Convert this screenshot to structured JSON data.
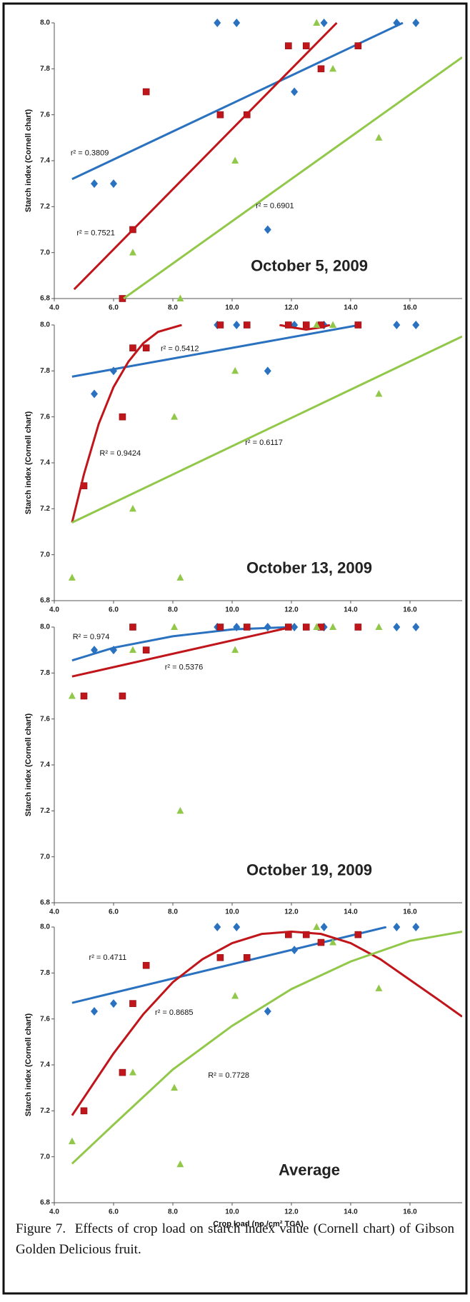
{
  "chart_data": [
    {
      "type": "scatter",
      "title": "October 5, 2009",
      "ylabel": "Starch index (Cornell chart)",
      "xlim": [
        4,
        17.76
      ],
      "ylim": [
        6.8,
        8.0
      ],
      "xticks": [
        {
          "value": 4,
          "label": "4.0"
        },
        {
          "value": 6,
          "label": "6.0"
        },
        {
          "value": 8,
          "label": "8.0"
        },
        {
          "value": 10,
          "label": "10.0"
        },
        {
          "value": 12,
          "label": "12.0"
        },
        {
          "value": 14,
          "label": "14.0"
        },
        {
          "value": 16,
          "label": "16.0"
        }
      ],
      "yticks": [
        6.8,
        {
          "value": 7,
          "label": "7.0"
        },
        7.2,
        7.4,
        7.6,
        7.8,
        {
          "value": 8,
          "label": "8.0"
        }
      ],
      "series": [
        {
          "marker": "diamond",
          "color": "#2a72c0",
          "x": [
            5.35,
            6.0,
            9.5,
            10.15,
            11.2,
            12.1,
            13.1,
            15.55,
            16.2
          ],
          "values": [
            7.3,
            7.3,
            8.0,
            8.0,
            7.1,
            7.7,
            8.0,
            8.0,
            8.0
          ],
          "trend": {
            "x": [
              4.6,
              15.76
            ],
            "y": [
              7.32,
              8.0
            ]
          },
          "r2_label": "r² = 0.3809"
        },
        {
          "marker": "square",
          "color": "#c0161b",
          "x": [
            6.3,
            6.65,
            7.1,
            9.6,
            10.5,
            11.9,
            12.5,
            13.0,
            14.25
          ],
          "values": [
            6.8,
            7.1,
            7.7,
            7.6,
            7.6,
            7.9,
            7.9,
            7.8,
            7.9
          ],
          "trend": {
            "x": [
              4.67,
              13.53
            ],
            "y": [
              6.84,
              8.0
            ]
          },
          "r2_label": "r² = 0.7521"
        },
        {
          "marker": "triangle",
          "color": "#92c84a",
          "x": [
            6.65,
            8.25,
            10.1,
            12.85,
            13.4,
            14.95
          ],
          "values": [
            7.0,
            6.8,
            7.4,
            8.0,
            7.8,
            7.5
          ],
          "trend": {
            "x": [
              6.34,
              17.76
            ],
            "y": [
              6.8,
              7.85
            ]
          },
          "r2_label": "r² = 0.6901"
        }
      ]
    },
    {
      "type": "scatter",
      "title": "October 13, 2009",
      "ylabel": "Starch index (Cornell chart)",
      "xlim": [
        4,
        17.76
      ],
      "ylim": [
        6.8,
        8.0
      ],
      "xticks": [
        {
          "value": 4,
          "label": "4.0"
        },
        {
          "value": 6,
          "label": "6.0"
        },
        {
          "value": 8,
          "label": "8.0"
        },
        {
          "value": 10,
          "label": "10.0"
        },
        {
          "value": 12,
          "label": "12.0"
        },
        {
          "value": 14,
          "label": "14.0"
        },
        {
          "value": 16,
          "label": "16.0"
        }
      ],
      "yticks": [
        6.8,
        {
          "value": 7,
          "label": "7.0"
        },
        7.2,
        7.4,
        7.6,
        7.8,
        {
          "value": 8,
          "label": "8.0"
        }
      ],
      "series": [
        {
          "marker": "diamond",
          "color": "#2a72c0",
          "x": [
            5.35,
            6.0,
            9.5,
            10.15,
            11.2,
            12.1,
            13.1,
            15.55,
            16.2
          ],
          "values": [
            7.7,
            7.8,
            8.0,
            8.0,
            7.8,
            8.0,
            8.0,
            8.0,
            8.0
          ],
          "trend": {
            "x": [
              4.6,
              14.3
            ],
            "y": [
              7.775,
              8.0
            ]
          },
          "r2_label": "r² = 0.5412"
        },
        {
          "marker": "square",
          "color": "#c0161b",
          "x": [
            5.0,
            6.3,
            6.65,
            7.1,
            9.6,
            10.5,
            11.9,
            12.5,
            13.0,
            14.25
          ],
          "values": [
            7.3,
            7.6,
            7.9,
            7.9,
            8.0,
            8.0,
            8.0,
            8.0,
            8.0,
            8.0
          ],
          "trend": {
            "x": [
              4.6,
              5.0,
              5.5,
              6.0,
              6.5,
              7.0,
              7.5,
              8.3,
              null,
              11.6,
              12.0,
              12.5,
              13.0,
              13.3
            ],
            "y": [
              7.14,
              7.35,
              7.57,
              7.73,
              7.84,
              7.92,
              7.97,
              8.0,
              null,
              8.0,
              7.99,
              7.98,
              7.99,
              8.0
            ]
          },
          "r2_label": "R² = 0.9424"
        },
        {
          "marker": "triangle",
          "color": "#92c84a",
          "x": [
            4.6,
            6.65,
            8.05,
            8.25,
            10.1,
            12.85,
            13.4,
            14.95
          ],
          "values": [
            6.9,
            7.2,
            7.6,
            6.9,
            7.8,
            8.0,
            8.0,
            7.7
          ],
          "trend": {
            "x": [
              4.6,
              17.76
            ],
            "y": [
              7.14,
              7.95
            ]
          },
          "r2_label": "r² = 0.6117"
        }
      ]
    },
    {
      "type": "scatter",
      "title": "October 19, 2009",
      "ylabel": "Starch index (Cornell chart)",
      "xlim": [
        4,
        17.76
      ],
      "ylim": [
        6.8,
        8.0
      ],
      "xticks": [
        {
          "value": 4,
          "label": "4.0"
        },
        {
          "value": 6,
          "label": "6.0"
        },
        {
          "value": 8,
          "label": "8.0"
        },
        {
          "value": 10,
          "label": "10.0"
        },
        {
          "value": 12,
          "label": "12.0"
        },
        {
          "value": 14,
          "label": "14.0"
        },
        {
          "value": 16,
          "label": "16.0"
        }
      ],
      "yticks": [
        6.8,
        {
          "value": 7,
          "label": "7.0"
        },
        7.2,
        7.4,
        7.6,
        7.8,
        {
          "value": 8,
          "label": "8.0"
        }
      ],
      "series": [
        {
          "marker": "diamond",
          "color": "#2a72c0",
          "x": [
            5.35,
            6.0,
            9.5,
            10.15,
            11.2,
            12.1,
            13.1,
            15.55,
            16.2
          ],
          "values": [
            7.9,
            7.9,
            8.0,
            8.0,
            8.0,
            8.0,
            8.0,
            8.0,
            8.0
          ],
          "trend": {
            "x": [
              4.6,
              6.0,
              8.0,
              10.0,
              12.0
            ],
            "y": [
              7.855,
              7.91,
              7.96,
              7.99,
              8.0
            ]
          },
          "r2_label": "R² = 0.974"
        },
        {
          "marker": "square",
          "color": "#c0161b",
          "x": [
            5.0,
            6.3,
            6.65,
            7.1,
            9.6,
            10.5,
            11.9,
            12.5,
            13.0,
            14.25
          ],
          "values": [
            7.7,
            7.7,
            8.0,
            7.9,
            8.0,
            8.0,
            8.0,
            8.0,
            8.0,
            8.0
          ],
          "trend": {
            "x": [
              4.6,
              12.0
            ],
            "y": [
              7.785,
              8.0
            ]
          },
          "r2_label": "r² = 0.5376"
        },
        {
          "marker": "triangle",
          "color": "#92c84a",
          "x": [
            4.6,
            6.65,
            8.05,
            8.25,
            10.1,
            12.85,
            13.4,
            14.95
          ],
          "values": [
            7.7,
            7.9,
            8.0,
            7.2,
            7.9,
            8.0,
            8.0,
            8.0
          ]
        }
      ]
    },
    {
      "type": "scatter",
      "title": "Average",
      "ylabel": "Starch index (Cornell chart)",
      "xlabel": "Crop load (no./cm² TCA)",
      "xlim": [
        4,
        17.76
      ],
      "ylim": [
        6.8,
        8.0
      ],
      "xticks": [
        {
          "value": 4,
          "label": "4.0"
        },
        {
          "value": 6,
          "label": "6.0"
        },
        {
          "value": 8,
          "label": "8.0"
        },
        {
          "value": 10,
          "label": "10.0"
        },
        {
          "value": 12,
          "label": "12.0"
        },
        {
          "value": 14,
          "label": "14.0"
        },
        {
          "value": 16,
          "label": "16.0"
        }
      ],
      "yticks": [
        6.8,
        {
          "value": 7,
          "label": "7.0"
        },
        7.2,
        7.4,
        7.6,
        7.8,
        {
          "value": 8,
          "label": "8.0"
        }
      ],
      "series": [
        {
          "marker": "diamond",
          "color": "#2a72c0",
          "x": [
            5.35,
            6.0,
            9.5,
            10.15,
            11.2,
            12.1,
            13.1,
            15.55,
            16.2
          ],
          "values": [
            7.633,
            7.667,
            8.0,
            8.0,
            7.633,
            7.9,
            8.0,
            8.0,
            8.0
          ],
          "trend": {
            "x": [
              4.6,
              15.2
            ],
            "y": [
              7.67,
              8.0
            ]
          },
          "r2_label": "r² = 0.4711"
        },
        {
          "marker": "square",
          "color": "#c0161b",
          "x": [
            5.0,
            6.3,
            6.65,
            7.1,
            9.6,
            10.5,
            11.9,
            12.5,
            13.0,
            14.25
          ],
          "values": [
            7.2,
            7.367,
            7.667,
            7.833,
            7.867,
            7.867,
            7.967,
            7.967,
            7.933,
            7.967
          ],
          "trend": {
            "x": [
              4.6,
              6,
              7,
              8,
              9,
              10,
              11,
              12,
              13,
              14,
              15,
              16,
              17,
              17.76
            ],
            "y": [
              7.18,
              7.45,
              7.62,
              7.76,
              7.86,
              7.93,
              7.97,
              7.98,
              7.97,
              7.93,
              7.86,
              7.77,
              7.68,
              7.61
            ]
          },
          "r2_label": "r² = 0.8685"
        },
        {
          "marker": "triangle",
          "color": "#92c84a",
          "x": [
            4.6,
            6.65,
            8.05,
            8.25,
            10.1,
            12.85,
            13.4,
            14.95
          ],
          "values": [
            7.067,
            7.367,
            7.3,
            6.967,
            7.7,
            8.0,
            7.933,
            7.733
          ],
          "trend": {
            "x": [
              4.6,
              6,
              8,
              10,
              12,
              14,
              16,
              17.76
            ],
            "y": [
              6.97,
              7.14,
              7.38,
              7.57,
              7.73,
              7.85,
              7.94,
              7.98
            ]
          },
          "r2_label": "R² = 0.7728"
        }
      ]
    }
  ],
  "caption": "Figure 7.  Effects of crop load on starch index value (Cornell chart) of Gibson Golden Delicious fruit."
}
